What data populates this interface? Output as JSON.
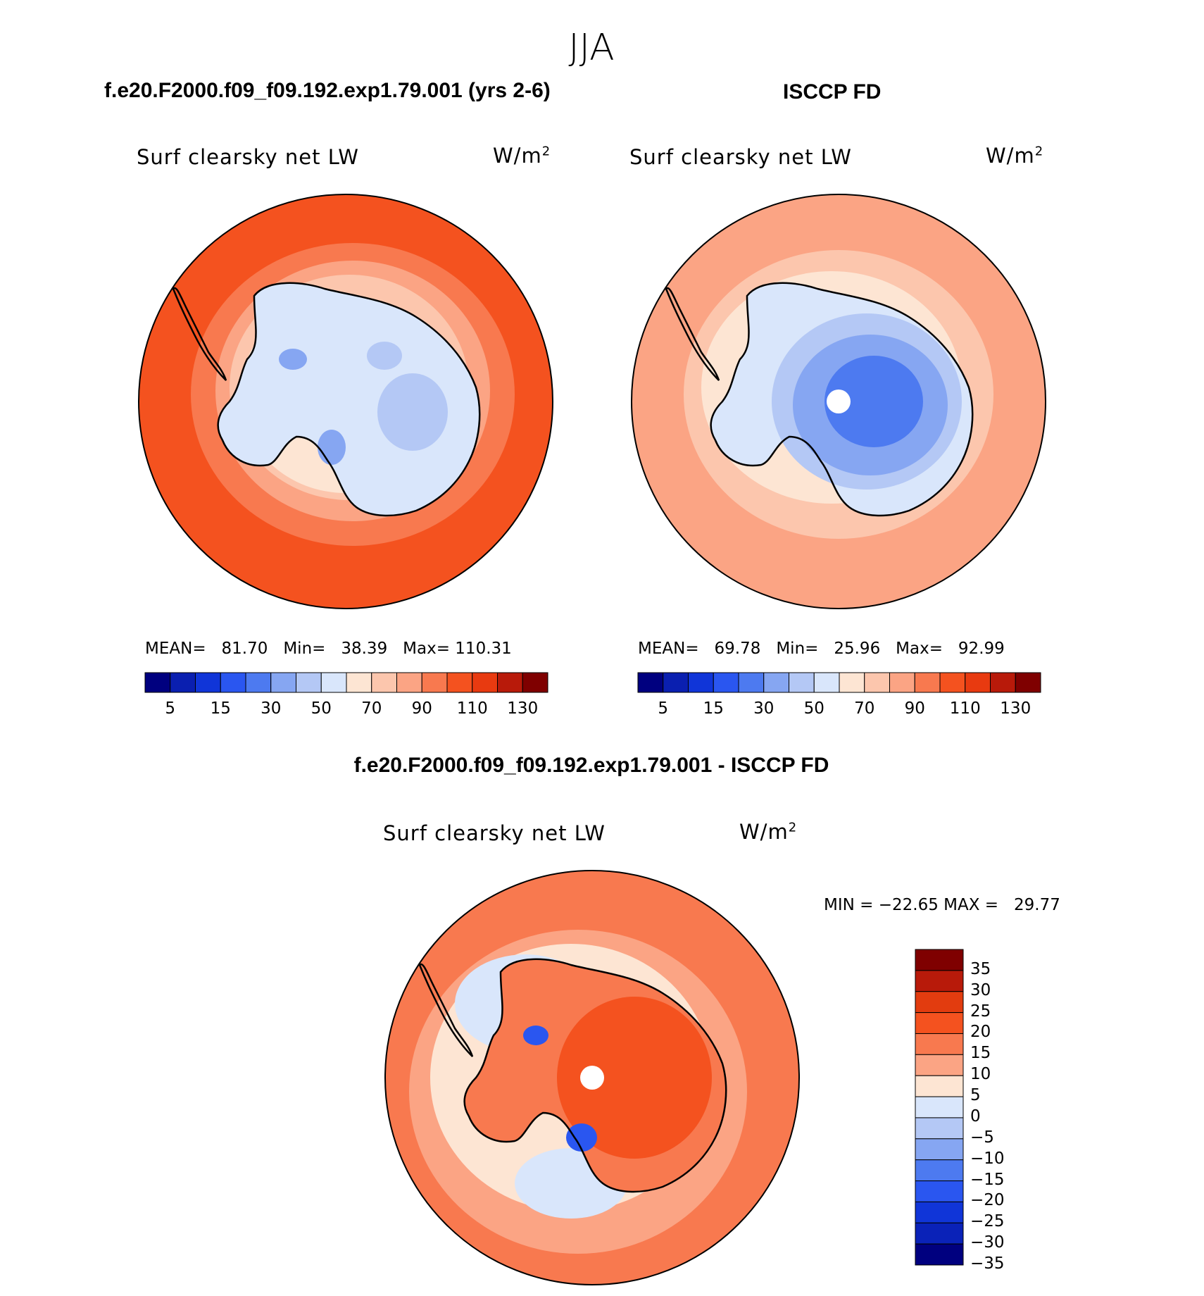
{
  "figure": {
    "season": "JJA"
  },
  "panels": [
    {
      "id": "model",
      "title": "f.e20.F2000.f09_f09.192.exp1.79.001 (yrs 2-6)",
      "field_label": "Surf clearsky net LW",
      "units_base": "W/m",
      "units_exp": "2",
      "stats": {
        "mean_label": "MEAN=",
        "mean": "81.70",
        "min_label": "Min=",
        "min": "38.39",
        "max_label": "Max=",
        "max": "110.31"
      }
    },
    {
      "id": "obs",
      "title": "ISCCP FD",
      "field_label": "Surf clearsky net LW",
      "units_base": "W/m",
      "units_exp": "2",
      "stats": {
        "mean_label": "MEAN=",
        "mean": "69.78",
        "min_label": "Min=",
        "min": "25.96",
        "max_label": "Max=",
        "max": "92.99"
      }
    },
    {
      "id": "diff",
      "title": "f.e20.F2000.f09_f09.192.exp1.79.001 - ISCCP FD",
      "field_label": "Surf clearsky net LW",
      "units_base": "W/m",
      "units_exp": "2",
      "stats_text": "MIN = −22.65 MAX =   29.77"
    }
  ],
  "colorbars": {
    "abs": {
      "colors": [
        "#00007f",
        "#0a1fb0",
        "#1035d8",
        "#2a56f0",
        "#4d7af0",
        "#86a6f2",
        "#b4c8f5",
        "#d9e6fb",
        "#fde5d3",
        "#fcc6ad",
        "#fba484",
        "#f8794f",
        "#f4521f",
        "#e83a10",
        "#b81a0a",
        "#7f0000"
      ],
      "tick_labels": [
        "5",
        "15",
        "30",
        "50",
        "70",
        "90",
        "110",
        "130"
      ]
    },
    "diff": {
      "colors": [
        "#7f0000",
        "#b81a0a",
        "#e23c0f",
        "#f4521f",
        "#f8794f",
        "#fba484",
        "#fde5d3",
        "#d9e6fb",
        "#b4c8f5",
        "#86a6f2",
        "#4d7af0",
        "#2a56f0",
        "#1035d8",
        "#0a22b8",
        "#00007f"
      ],
      "tick_labels": [
        "35",
        "30",
        "25",
        "20",
        "15",
        "10",
        "5",
        "0",
        "−5",
        "−10",
        "−15",
        "−20",
        "−25",
        "−30",
        "−35"
      ]
    }
  },
  "map_colors": {
    "outer": "#f4521f",
    "ring2": "#f8794f",
    "ring3": "#fba484",
    "ring4": "#fcc6ad",
    "ring5": "#fde5d3",
    "land_model": "#d9e6fb",
    "land_model_inner": "#b4c8f5",
    "obs_outer": "#fba484",
    "obs_ring": "#fcc6ad",
    "obs_land1": "#d9e6fb",
    "obs_land2": "#b4c8f5",
    "obs_land3": "#86a6f2",
    "obs_land4": "#4d7af0",
    "diff_outer": "#f8794f",
    "diff_ring": "#fba484",
    "diff_ocean_neg": "#d9e6fb",
    "diff_land": "#f4521f",
    "diff_land2": "#f8794f",
    "diff_neg_spot": "#2a56f0"
  }
}
